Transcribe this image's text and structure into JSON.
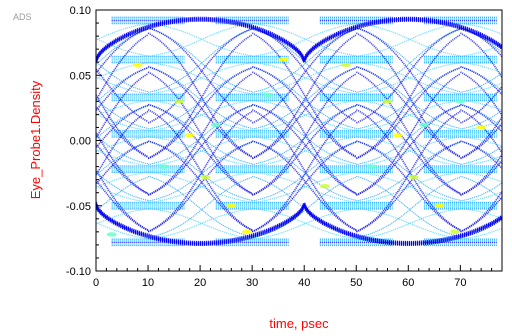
{
  "app_tag": "ADS",
  "chart_data": {
    "type": "heatmap",
    "subtype": "eye-diagram density",
    "title": "",
    "xlabel": "time, psec",
    "ylabel": "Eye_Probe1.Density",
    "xlim": [
      0,
      75
    ],
    "ylim": [
      -0.1,
      0.1
    ],
    "x_ticks": [
      0,
      10,
      20,
      30,
      40,
      50,
      60,
      70
    ],
    "x_tick_labels": [
      "0",
      "10",
      "20",
      "30",
      "40",
      "50",
      "60",
      "70"
    ],
    "y_ticks": [
      0.1,
      0.05,
      0.0,
      -0.05,
      -0.1
    ],
    "y_tick_labels": [
      "0.10",
      "0.05",
      "0.00",
      "-0.05",
      "-0.10"
    ],
    "grid": false,
    "legend": "none",
    "unit_interval_psec": 40,
    "crossing_times_psec": [
      0,
      20,
      40,
      60
    ],
    "signal_levels": [
      0.092,
      0.062,
      0.033,
      0.005,
      -0.022,
      -0.05,
      -0.078
    ],
    "colormap": [
      "#0000ee",
      "#0099ff",
      "#33ccff",
      "#66ffcc",
      "#ccff33",
      "#ffff00"
    ]
  }
}
